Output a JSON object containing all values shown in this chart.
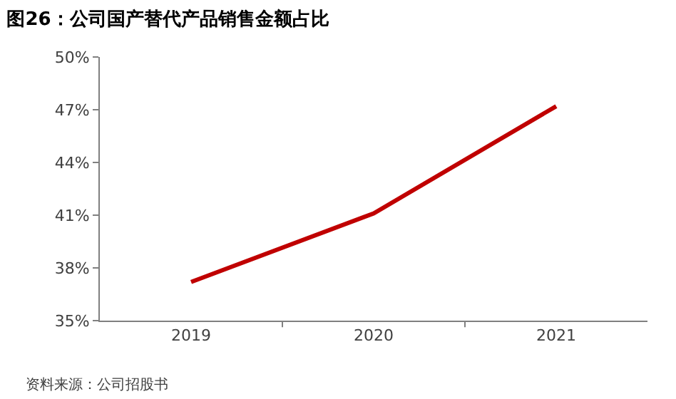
{
  "chart_data": {
    "type": "line",
    "title": "图26：公司国产替代产品销售金额占比",
    "categories": [
      "2019",
      "2020",
      "2021"
    ],
    "series": [
      {
        "color": "#c00000",
        "values": [
          37.2,
          41.1,
          47.2
        ]
      }
    ],
    "ylim": [
      35,
      50
    ],
    "yticks": [
      {
        "value": 35,
        "label": "35%"
      },
      {
        "value": 38,
        "label": "38%"
      },
      {
        "value": 41,
        "label": "41%"
      },
      {
        "value": 44,
        "label": "44%"
      },
      {
        "value": 47,
        "label": "47%"
      },
      {
        "value": 50,
        "label": "50%"
      }
    ],
    "legend": false,
    "marker": "none",
    "line_style": "solid",
    "annotations": [
      "资料来源：公司招股书"
    ]
  }
}
